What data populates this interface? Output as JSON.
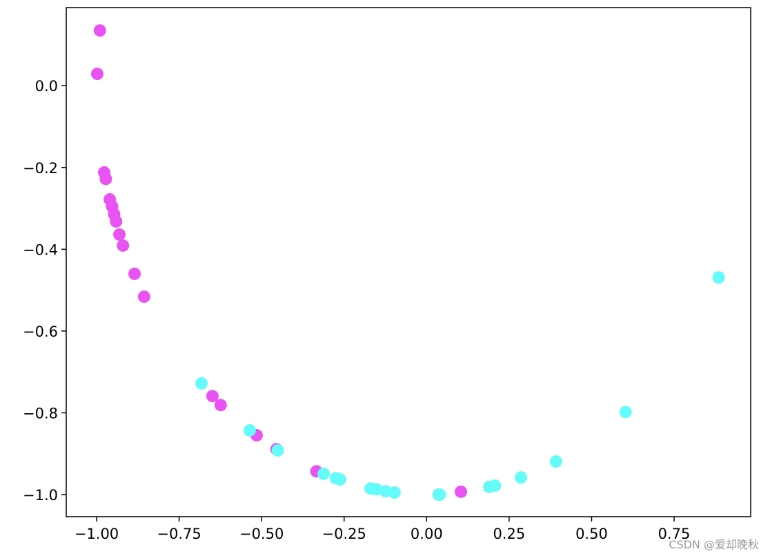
{
  "chart_data": {
    "type": "scatter",
    "series": [
      {
        "color": "#e953f3",
        "x": [
          -0.99,
          -0.998,
          -0.977,
          -0.972,
          -0.96,
          -0.953,
          -0.947,
          -0.941,
          -0.931,
          -0.92,
          -0.885,
          -0.856,
          -0.649,
          -0.624,
          -0.515,
          -0.455,
          -0.334,
          0.104
        ],
        "y": [
          0.135,
          0.029,
          -0.212,
          -0.228,
          -0.278,
          -0.295,
          -0.314,
          -0.332,
          -0.364,
          -0.391,
          -0.46,
          -0.516,
          -0.759,
          -0.781,
          -0.855,
          -0.889,
          -0.943,
          -0.993
        ]
      },
      {
        "color": "#66fbfb",
        "x": [
          -0.682,
          -0.536,
          -0.451,
          -0.312,
          -0.275,
          -0.262,
          -0.17,
          -0.153,
          -0.124,
          -0.097,
          0.036,
          0.04,
          0.19,
          0.207,
          0.286,
          0.392,
          0.603,
          0.885
        ],
        "y": [
          -0.728,
          -0.843,
          -0.892,
          -0.949,
          -0.96,
          -0.963,
          -0.985,
          -0.987,
          -0.992,
          -0.995,
          -1.0,
          -1.0,
          -0.981,
          -0.978,
          -0.958,
          -0.919,
          -0.798,
          -0.469
        ]
      }
    ],
    "xlim": [
      -1.092,
      0.982
    ],
    "ylim": [
      -1.054,
      0.191
    ],
    "xticks": [
      {
        "value": -1.0,
        "label": "−1.00"
      },
      {
        "value": -0.75,
        "label": "−0.75"
      },
      {
        "value": -0.5,
        "label": "−0.50"
      },
      {
        "value": -0.25,
        "label": "−0.25"
      },
      {
        "value": 0,
        "label": "0.00"
      },
      0.25,
      {
        "value": 0.5,
        "label": "0.50"
      },
      0.75
    ],
    "yticks": [
      {
        "value": -1.0,
        "label": "−1.0"
      },
      {
        "value": -0.8,
        "label": "−0.8"
      },
      {
        "value": -0.6,
        "label": "−0.6"
      },
      {
        "value": -0.4,
        "label": "−0.4"
      },
      {
        "value": -0.2,
        "label": "−0.2"
      },
      {
        "value": 0,
        "label": "0.0"
      }
    ],
    "watermark": "CSDN @爱却晚秋"
  }
}
